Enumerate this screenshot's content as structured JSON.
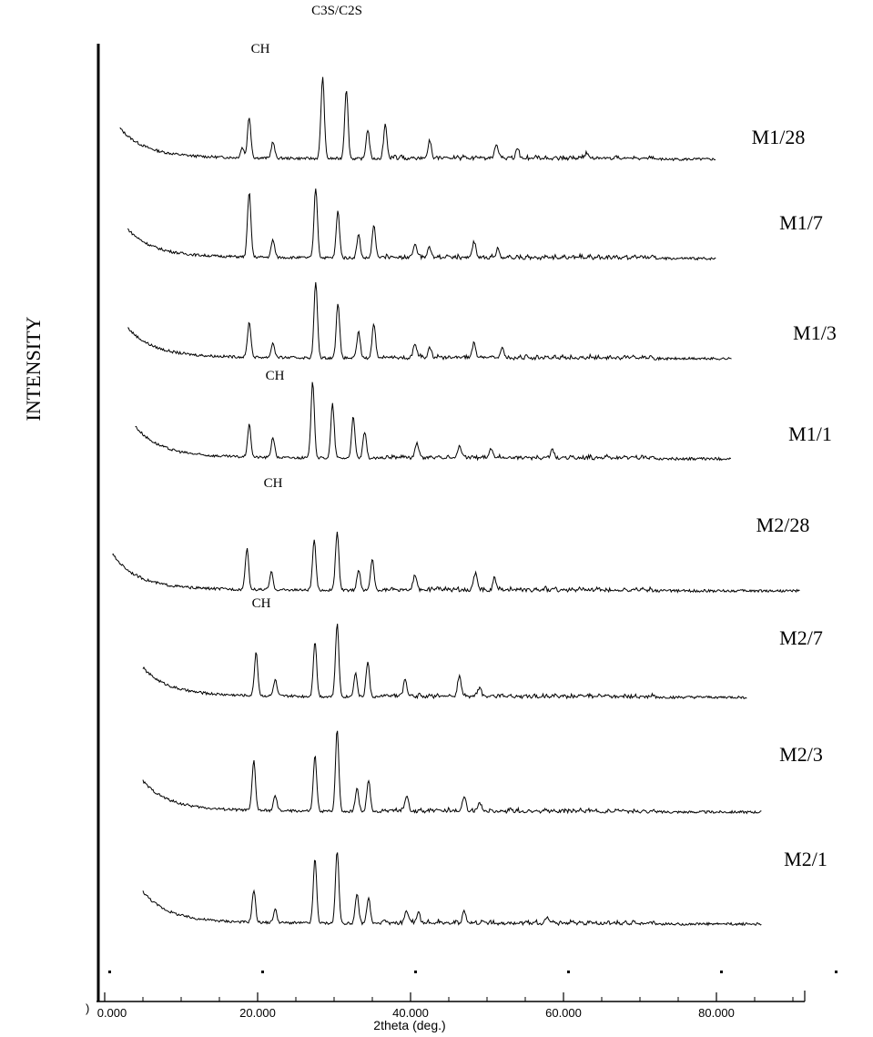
{
  "chart_data": {
    "type": "line",
    "title": "",
    "xlabel": "2theta (deg.)",
    "ylabel": "INTENSITY",
    "xlim": [
      0,
      92
    ],
    "x_ticks": [
      0,
      20,
      40,
      60,
      80
    ],
    "x_tick_labels": [
      "0.000",
      "20.000",
      "40.000",
      "60.000",
      "80.000"
    ],
    "y_ticks_visible": false,
    "grid": false,
    "legend": "series labels at right end of each trace",
    "colors": {
      "trace": "#000000",
      "background": "#ffffff"
    },
    "peak_annotations": [
      "C3S/C2S",
      "CH",
      "CH",
      "CH",
      "CH"
    ],
    "series": [
      {
        "name": "M1/28",
        "x_range": [
          2,
          80
        ],
        "background_start": 9.5,
        "background_end": 0.0,
        "peaks": [
          [
            18.0,
            3.5
          ],
          [
            18.9,
            14.0
          ],
          [
            22.0,
            5.5
          ],
          [
            28.5,
            28.0
          ],
          [
            31.6,
            24.0
          ],
          [
            34.4,
            10.0
          ],
          [
            36.7,
            11.0
          ],
          [
            42.5,
            6.0
          ],
          [
            51.2,
            5.0
          ],
          [
            54.0,
            3.0
          ],
          [
            63.0,
            2.0
          ]
        ]
      },
      {
        "name": "M1/7",
        "x_range": [
          3,
          80
        ],
        "background_start": 9.0,
        "background_end": 0.0,
        "peaks": [
          [
            18.9,
            22.0
          ],
          [
            22.0,
            6.0
          ],
          [
            27.6,
            24.0
          ],
          [
            30.5,
            16.0
          ],
          [
            33.2,
            8.0
          ],
          [
            35.2,
            11.0
          ],
          [
            40.6,
            4.5
          ],
          [
            42.5,
            3.0
          ],
          [
            48.3,
            5.0
          ],
          [
            51.4,
            3.0
          ]
        ]
      },
      {
        "name": "M1/3",
        "x_range": [
          3,
          82
        ],
        "background_start": 9.5,
        "background_end": 0.0,
        "peaks": [
          [
            18.9,
            12.0
          ],
          [
            22.0,
            5.0
          ],
          [
            27.6,
            26.0
          ],
          [
            30.5,
            19.0
          ],
          [
            33.2,
            9.0
          ],
          [
            35.2,
            12.0
          ],
          [
            40.6,
            4.5
          ],
          [
            42.5,
            3.5
          ],
          [
            48.3,
            5.0
          ],
          [
            52.0,
            3.0
          ]
        ]
      },
      {
        "name": "M1/1",
        "x_range": [
          4,
          82
        ],
        "background_start": 10.0,
        "background_end": 0.0,
        "peaks": [
          [
            18.9,
            11.0
          ],
          [
            22.0,
            7.0
          ],
          [
            27.2,
            26.0
          ],
          [
            29.8,
            18.5
          ],
          [
            32.5,
            14.0
          ],
          [
            34.0,
            9.0
          ],
          [
            40.8,
            5.0
          ],
          [
            46.4,
            4.0
          ],
          [
            50.5,
            3.0
          ],
          [
            58.5,
            2.5
          ]
        ]
      },
      {
        "name": "M2/28",
        "x_range": [
          1,
          91
        ],
        "background_start": 11.5,
        "background_end": 0.0,
        "peaks": [
          [
            18.6,
            14.0
          ],
          [
            21.8,
            6.0
          ],
          [
            27.4,
            17.0
          ],
          [
            30.4,
            20.0
          ],
          [
            33.2,
            7.0
          ],
          [
            35.0,
            11.0
          ],
          [
            40.6,
            5.0
          ],
          [
            48.5,
            6.0
          ],
          [
            51.0,
            4.0
          ]
        ]
      },
      {
        "name": "M2/7",
        "x_range": [
          5,
          84
        ],
        "background_start": 9.0,
        "background_end": 0.0,
        "peaks": [
          [
            19.8,
            15.0
          ],
          [
            22.3,
            5.5
          ],
          [
            27.5,
            19.0
          ],
          [
            30.4,
            25.0
          ],
          [
            32.8,
            8.0
          ],
          [
            34.4,
            12.0
          ],
          [
            39.3,
            5.5
          ],
          [
            46.4,
            7.0
          ],
          [
            49.0,
            3.0
          ]
        ]
      },
      {
        "name": "M2/3",
        "x_range": [
          5,
          86
        ],
        "background_start": 9.5,
        "background_end": 0.0,
        "peaks": [
          [
            19.5,
            17.0
          ],
          [
            22.3,
            5.0
          ],
          [
            27.5,
            19.0
          ],
          [
            30.4,
            28.0
          ],
          [
            33.0,
            8.0
          ],
          [
            34.5,
            11.0
          ],
          [
            39.5,
            5.0
          ],
          [
            47.0,
            5.0
          ],
          [
            49.0,
            3.0
          ]
        ]
      },
      {
        "name": "M2/1",
        "x_range": [
          5,
          86
        ],
        "background_start": 10.0,
        "background_end": 0.0,
        "peaks": [
          [
            19.5,
            11.0
          ],
          [
            22.3,
            4.5
          ],
          [
            27.5,
            22.0
          ],
          [
            30.4,
            25.0
          ],
          [
            33.0,
            10.0
          ],
          [
            34.5,
            9.0
          ],
          [
            39.5,
            4.0
          ],
          [
            41.0,
            3.5
          ],
          [
            47.0,
            4.0
          ],
          [
            58.0,
            2.0
          ]
        ]
      }
    ]
  }
}
